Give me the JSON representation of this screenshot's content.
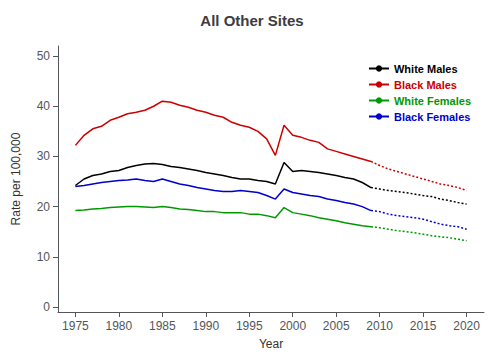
{
  "chart_data": {
    "type": "line",
    "title": "All Other Sites",
    "xlabel": "Year",
    "ylabel": "Rate per 100,000",
    "xlim": [
      1973,
      2022
    ],
    "ylim": [
      -1,
      52
    ],
    "xticks": [
      1975,
      1980,
      1985,
      1990,
      1995,
      2000,
      2005,
      2010,
      2015,
      2020
    ],
    "yticks": [
      0,
      10,
      20,
      30,
      40,
      50
    ],
    "grid": false,
    "legend": "upper right",
    "series": [
      {
        "name": "White Males",
        "color": "#000000",
        "line_style": "solid",
        "x": [
          1975,
          1976,
          1977,
          1978,
          1979,
          1980,
          1981,
          1982,
          1983,
          1984,
          1985,
          1986,
          1987,
          1988,
          1989,
          1990,
          1991,
          1992,
          1993,
          1994,
          1995,
          1996,
          1997,
          1998,
          1999,
          2000,
          2001,
          2002,
          2003,
          2004,
          2005,
          2006,
          2007,
          2008,
          2009
        ],
        "values": [
          24.2,
          25.5,
          26.2,
          26.5,
          27.0,
          27.2,
          27.8,
          28.2,
          28.5,
          28.6,
          28.4,
          28.0,
          27.8,
          27.5,
          27.2,
          26.8,
          26.5,
          26.2,
          25.8,
          25.5,
          25.5,
          25.2,
          25.0,
          24.5,
          28.8,
          27.0,
          27.2,
          27.0,
          26.8,
          26.5,
          26.2,
          25.8,
          25.5,
          24.8,
          23.8
        ]
      },
      {
        "name": "Black Males",
        "color": "#cc0000",
        "line_style": "solid",
        "x": [
          1975,
          1976,
          1977,
          1978,
          1979,
          1980,
          1981,
          1982,
          1983,
          1984,
          1985,
          1986,
          1987,
          1988,
          1989,
          1990,
          1991,
          1992,
          1993,
          1994,
          1995,
          1996,
          1997,
          1998,
          1999,
          2000,
          2001,
          2002,
          2003,
          2004,
          2005,
          2006,
          2007,
          2008,
          2009
        ],
        "values": [
          32.2,
          34.2,
          35.5,
          36.0,
          37.2,
          37.8,
          38.5,
          38.8,
          39.2,
          40.0,
          41.0,
          40.8,
          40.2,
          39.8,
          39.2,
          38.8,
          38.2,
          37.8,
          36.8,
          36.2,
          35.8,
          35.0,
          33.5,
          30.2,
          36.2,
          34.2,
          33.8,
          33.2,
          32.8,
          31.5,
          31.0,
          30.5,
          30.0,
          29.5,
          29.0
        ]
      },
      {
        "name": "White Females",
        "color": "#009900",
        "line_style": "solid",
        "x": [
          1975,
          1976,
          1977,
          1978,
          1979,
          1980,
          1981,
          1982,
          1983,
          1984,
          1985,
          1986,
          1987,
          1988,
          1989,
          1990,
          1991,
          1992,
          1993,
          1994,
          1995,
          1996,
          1997,
          1998,
          1999,
          2000,
          2001,
          2002,
          2003,
          2004,
          2005,
          2006,
          2007,
          2008,
          2009
        ],
        "values": [
          19.2,
          19.3,
          19.5,
          19.6,
          19.8,
          19.9,
          20.0,
          20.0,
          19.9,
          19.8,
          20.0,
          19.8,
          19.5,
          19.4,
          19.2,
          19.0,
          19.0,
          18.8,
          18.8,
          18.8,
          18.5,
          18.5,
          18.2,
          17.8,
          19.8,
          18.8,
          18.5,
          18.2,
          17.8,
          17.5,
          17.2,
          16.8,
          16.5,
          16.2,
          16.0
        ]
      },
      {
        "name": "Black Females",
        "color": "#0000cc",
        "line_style": "solid",
        "x": [
          1975,
          1976,
          1977,
          1978,
          1979,
          1980,
          1981,
          1982,
          1983,
          1984,
          1985,
          1986,
          1987,
          1988,
          1989,
          1990,
          1991,
          1992,
          1993,
          1994,
          1995,
          1996,
          1997,
          1998,
          1999,
          2000,
          2001,
          2002,
          2003,
          2004,
          2005,
          2006,
          2007,
          2008,
          2009
        ],
        "values": [
          24.0,
          24.2,
          24.5,
          24.8,
          25.0,
          25.2,
          25.3,
          25.5,
          25.2,
          25.0,
          25.5,
          25.0,
          24.5,
          24.2,
          23.8,
          23.5,
          23.2,
          23.0,
          23.0,
          23.2,
          23.0,
          22.8,
          22.2,
          21.5,
          23.5,
          22.8,
          22.5,
          22.2,
          22.0,
          21.5,
          21.2,
          20.8,
          20.5,
          20.0,
          19.2
        ]
      },
      {
        "name": "White Males",
        "color": "#000000",
        "line_style": "dotted",
        "x": [
          2009,
          2010,
          2011,
          2012,
          2013,
          2014,
          2015,
          2016,
          2017,
          2018,
          2019,
          2020
        ],
        "values": [
          23.8,
          23.5,
          23.2,
          23.0,
          22.8,
          22.5,
          22.2,
          22.0,
          21.5,
          21.2,
          20.8,
          20.5
        ]
      },
      {
        "name": "Black Males",
        "color": "#cc0000",
        "line_style": "dotted",
        "x": [
          2009,
          2010,
          2011,
          2012,
          2013,
          2014,
          2015,
          2016,
          2017,
          2018,
          2019,
          2020
        ],
        "values": [
          29.0,
          28.2,
          27.5,
          27.0,
          26.5,
          26.0,
          25.5,
          25.0,
          24.5,
          24.2,
          23.8,
          23.2
        ]
      },
      {
        "name": "White Females",
        "color": "#009900",
        "line_style": "dotted",
        "x": [
          2009,
          2010,
          2011,
          2012,
          2013,
          2014,
          2015,
          2016,
          2017,
          2018,
          2019,
          2020
        ],
        "values": [
          16.0,
          15.8,
          15.5,
          15.2,
          15.0,
          14.8,
          14.5,
          14.2,
          14.0,
          13.8,
          13.5,
          13.2
        ]
      },
      {
        "name": "Black Females",
        "color": "#0000cc",
        "line_style": "dotted",
        "x": [
          2009,
          2010,
          2011,
          2012,
          2013,
          2014,
          2015,
          2016,
          2017,
          2018,
          2019,
          2020
        ],
        "values": [
          19.2,
          19.0,
          18.5,
          18.2,
          18.0,
          17.8,
          17.5,
          17.0,
          16.5,
          16.2,
          16.0,
          15.5
        ]
      }
    ]
  }
}
